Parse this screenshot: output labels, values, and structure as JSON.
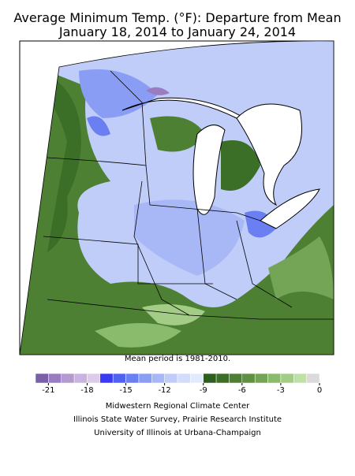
{
  "header": {
    "title": "Average Minimum Temp. (°F): Departure from Mean",
    "subtitle": "January 18, 2014 to January 24, 2014"
  },
  "note": "Mean period is 1981-2010.",
  "colorbar": {
    "bounds": [
      -22,
      -21,
      -20,
      -19,
      -18,
      -17,
      -16,
      -15,
      -14,
      -13,
      -12,
      -11,
      -10,
      -9,
      -8,
      -7,
      -6,
      -5,
      -4,
      -3,
      -2,
      -1,
      0
    ],
    "colors": [
      "#7b5fa8",
      "#9a7cc0",
      "#b39bd0",
      "#c9b3df",
      "#dccbea",
      "#3a3af0",
      "#4f62f0",
      "#6a80f2",
      "#8a9df5",
      "#a8b8f7",
      "#c0cdf9",
      "#d3ddfb",
      "#e2ebfc",
      "#2e5e1e",
      "#3b6e27",
      "#4d8033",
      "#5f9142",
      "#74a556",
      "#8aba6b",
      "#a3cd86",
      "#bfe0a6",
      "#dadada"
    ],
    "ticks": [
      -21,
      -18,
      -15,
      -12,
      -9,
      -6,
      -3,
      0
    ]
  },
  "credits": [
    "Midwestern Regional Climate Center",
    "Illinois State Water Survey, Prairie Research Institute",
    "University of Illinois at Urbana-Champaign"
  ]
}
